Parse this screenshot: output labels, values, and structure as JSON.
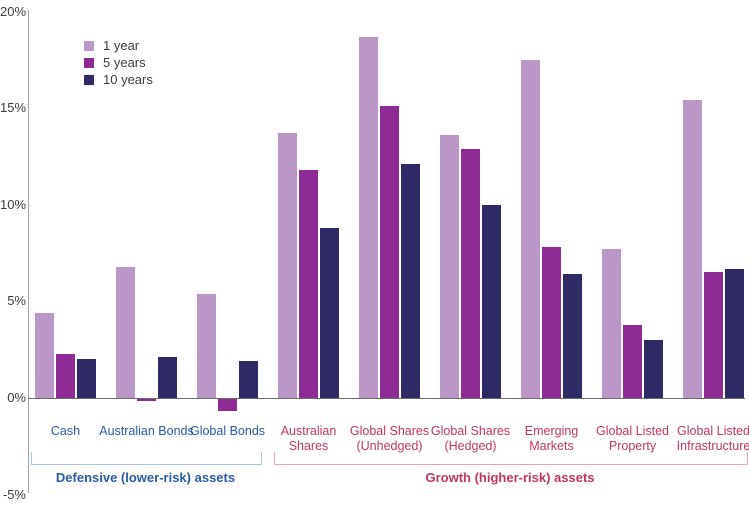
{
  "colors": {
    "series_1yr": "#bb97c8",
    "series_5yr": "#8e2b95",
    "series_10yr": "#2d2a66",
    "defensive_text": "#2a5ba6",
    "growth_text": "#c43561",
    "defensive_bracket": "#a9c4e3",
    "growth_bracket": "#e9a3b6",
    "axis_text": "#3d3d3d",
    "y_axis_line": "#a6a6a6",
    "zero_line": "#6b6b6b"
  },
  "legend": {
    "items": [
      {
        "label": "1 year",
        "color": "#bb97c8"
      },
      {
        "label": "5 years",
        "color": "#8e2b95"
      },
      {
        "label": "10 years",
        "color": "#2d2a66"
      }
    ]
  },
  "y_axis": {
    "tick_values": [
      20,
      15,
      10,
      5,
      0,
      -5
    ],
    "tick_labels": [
      "20%",
      "15%",
      "10%",
      "5%",
      "0%",
      "-5%"
    ]
  },
  "chart_data": {
    "type": "bar",
    "title": "",
    "xlabel": "",
    "ylabel": "",
    "ylim": [
      -5,
      20
    ],
    "grid": false,
    "legend_position": "top-left",
    "categories": [
      "Cash",
      "Australian Bonds",
      "Global Bonds",
      "Australian Shares",
      "Global Shares (Unhedged)",
      "Global Shares (Hedged)",
      "Emerging Markets",
      "Global Listed Property",
      "Global Listed Infrastructure"
    ],
    "series": [
      {
        "name": "1 year",
        "values": [
          4.4,
          6.8,
          5.4,
          13.7,
          18.7,
          13.6,
          17.5,
          7.7,
          15.4
        ]
      },
      {
        "name": "5 years",
        "values": [
          2.3,
          -0.1,
          -0.6,
          11.8,
          15.1,
          12.9,
          7.8,
          3.8,
          6.5
        ]
      },
      {
        "name": "10 years",
        "values": [
          2.0,
          2.1,
          1.9,
          8.8,
          12.1,
          10.0,
          6.4,
          3.0,
          6.7
        ]
      }
    ],
    "category_groups": [
      {
        "label": "Defensive (lower-risk) assets",
        "span": [
          0,
          2
        ]
      },
      {
        "label": "Growth (higher-risk) assets",
        "span": [
          3,
          8
        ]
      }
    ]
  }
}
